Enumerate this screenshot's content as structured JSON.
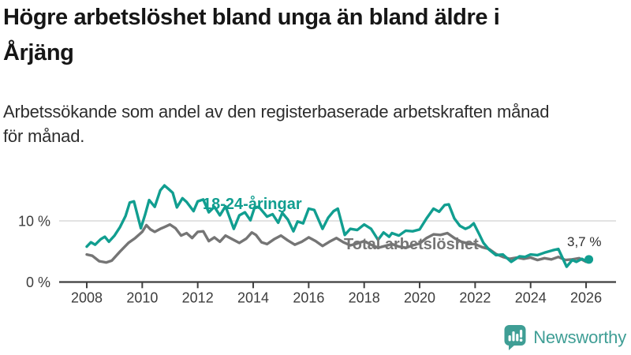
{
  "header": {
    "title": "Högre arbetslöshet bland unga än bland äldre i\nÅrjäng",
    "subtitle": "Arbetssökande som andel av den registerbaserade arbetskraften månad\nför månad."
  },
  "chart_data": {
    "type": "line",
    "title": "Högre arbetslöshet bland unga än bland äldre i Årjäng",
    "ylabel": "Arbetssökande som andel av den registerbaserade arbetskraften",
    "unit": "%",
    "xlim": [
      2008,
      2026.2
    ],
    "ylim": [
      0,
      17
    ],
    "grid": "horizontal",
    "legend_position": "inline-labels",
    "x_axis": {
      "ticks": [
        2008,
        2010,
        2012,
        2014,
        2016,
        2018,
        2020,
        2022,
        2024,
        2026
      ]
    },
    "y_axis": {
      "ticks": [
        {
          "value": 0,
          "label": "0 %"
        },
        {
          "value": 10,
          "label": "10 %"
        }
      ],
      "gridlines": [
        10
      ]
    },
    "series": [
      {
        "name": "Total arbetslöshet",
        "color": "#757575",
        "end_dot": false,
        "points": [
          [
            2008.0,
            4.5
          ],
          [
            2008.2,
            4.3
          ],
          [
            2008.45,
            3.4
          ],
          [
            2008.7,
            3.2
          ],
          [
            2008.9,
            3.5
          ],
          [
            2009.2,
            5.0
          ],
          [
            2009.5,
            6.4
          ],
          [
            2009.75,
            7.2
          ],
          [
            2010.0,
            8.2
          ],
          [
            2010.15,
            9.3
          ],
          [
            2010.3,
            8.6
          ],
          [
            2010.45,
            8.2
          ],
          [
            2010.65,
            8.7
          ],
          [
            2010.8,
            9.0
          ],
          [
            2011.0,
            9.4
          ],
          [
            2011.2,
            8.8
          ],
          [
            2011.4,
            7.6
          ],
          [
            2011.6,
            8.0
          ],
          [
            2011.8,
            7.2
          ],
          [
            2012.0,
            8.2
          ],
          [
            2012.2,
            8.3
          ],
          [
            2012.4,
            6.7
          ],
          [
            2012.6,
            7.3
          ],
          [
            2012.8,
            6.6
          ],
          [
            2013.0,
            7.6
          ],
          [
            2013.25,
            7.0
          ],
          [
            2013.5,
            6.4
          ],
          [
            2013.75,
            7.1
          ],
          [
            2013.95,
            8.1
          ],
          [
            2014.1,
            7.7
          ],
          [
            2014.3,
            6.5
          ],
          [
            2014.5,
            6.2
          ],
          [
            2014.75,
            7.0
          ],
          [
            2015.0,
            7.6
          ],
          [
            2015.25,
            6.8
          ],
          [
            2015.5,
            6.1
          ],
          [
            2015.75,
            6.6
          ],
          [
            2016.0,
            7.3
          ],
          [
            2016.25,
            6.7
          ],
          [
            2016.5,
            5.9
          ],
          [
            2016.75,
            6.6
          ],
          [
            2017.0,
            7.2
          ],
          [
            2017.25,
            6.5
          ],
          [
            2017.5,
            6.0
          ],
          [
            2017.75,
            6.3
          ],
          [
            2018.0,
            6.7
          ],
          [
            2018.25,
            6.1
          ],
          [
            2018.5,
            5.6
          ],
          [
            2018.75,
            5.9
          ],
          [
            2019.0,
            6.2
          ],
          [
            2019.25,
            5.8
          ],
          [
            2019.5,
            5.6
          ],
          [
            2019.75,
            6.0
          ],
          [
            2020.0,
            6.3
          ],
          [
            2020.25,
            7.2
          ],
          [
            2020.5,
            7.8
          ],
          [
            2020.75,
            7.7
          ],
          [
            2021.0,
            8.0
          ],
          [
            2021.25,
            7.2
          ],
          [
            2021.5,
            6.6
          ],
          [
            2021.75,
            6.3
          ],
          [
            2022.0,
            6.2
          ],
          [
            2022.25,
            5.7
          ],
          [
            2022.5,
            5.4
          ],
          [
            2022.75,
            4.6
          ],
          [
            2023.0,
            4.1
          ],
          [
            2023.25,
            3.8
          ],
          [
            2023.5,
            4.0
          ],
          [
            2023.75,
            3.8
          ],
          [
            2024.0,
            4.0
          ],
          [
            2024.25,
            3.6
          ],
          [
            2024.5,
            3.9
          ],
          [
            2024.75,
            3.7
          ],
          [
            2025.0,
            4.1
          ],
          [
            2025.25,
            3.6
          ],
          [
            2025.5,
            3.7
          ],
          [
            2025.75,
            3.9
          ],
          [
            2026.0,
            3.3
          ],
          [
            2026.15,
            3.5
          ]
        ]
      },
      {
        "name": "18-24-åringar",
        "color": "#119e90",
        "end_dot": true,
        "points": [
          [
            2008.0,
            5.8
          ],
          [
            2008.15,
            6.5
          ],
          [
            2008.3,
            6.1
          ],
          [
            2008.5,
            7.0
          ],
          [
            2008.65,
            7.4
          ],
          [
            2008.8,
            6.6
          ],
          [
            2009.0,
            7.6
          ],
          [
            2009.2,
            9.0
          ],
          [
            2009.4,
            10.8
          ],
          [
            2009.55,
            13.0
          ],
          [
            2009.7,
            13.2
          ],
          [
            2009.95,
            8.8
          ],
          [
            2010.1,
            11.0
          ],
          [
            2010.25,
            13.4
          ],
          [
            2010.45,
            12.3
          ],
          [
            2010.65,
            15.0
          ],
          [
            2010.8,
            15.8
          ],
          [
            2010.95,
            15.2
          ],
          [
            2011.1,
            14.6
          ],
          [
            2011.25,
            12.2
          ],
          [
            2011.45,
            13.7
          ],
          [
            2011.6,
            13.1
          ],
          [
            2011.85,
            11.6
          ],
          [
            2012.0,
            13.2
          ],
          [
            2012.2,
            13.5
          ],
          [
            2012.4,
            11.4
          ],
          [
            2012.6,
            12.3
          ],
          [
            2012.8,
            10.9
          ],
          [
            2013.0,
            12.4
          ],
          [
            2013.3,
            8.7
          ],
          [
            2013.5,
            10.9
          ],
          [
            2013.7,
            11.4
          ],
          [
            2013.9,
            10.1
          ],
          [
            2014.05,
            12.2
          ],
          [
            2014.2,
            12.3
          ],
          [
            2014.5,
            10.7
          ],
          [
            2014.7,
            11.1
          ],
          [
            2014.9,
            9.7
          ],
          [
            2015.05,
            11.3
          ],
          [
            2015.25,
            10.2
          ],
          [
            2015.45,
            8.3
          ],
          [
            2015.6,
            9.9
          ],
          [
            2015.8,
            9.6
          ],
          [
            2016.0,
            12.0
          ],
          [
            2016.2,
            11.8
          ],
          [
            2016.5,
            8.7
          ],
          [
            2016.7,
            10.5
          ],
          [
            2016.9,
            11.6
          ],
          [
            2017.05,
            12.0
          ],
          [
            2017.3,
            7.7
          ],
          [
            2017.5,
            8.7
          ],
          [
            2017.75,
            8.5
          ],
          [
            2018.0,
            9.4
          ],
          [
            2018.25,
            8.7
          ],
          [
            2018.5,
            6.9
          ],
          [
            2018.7,
            8.1
          ],
          [
            2018.9,
            7.4
          ],
          [
            2019.0,
            8.0
          ],
          [
            2019.25,
            7.6
          ],
          [
            2019.5,
            8.4
          ],
          [
            2019.75,
            8.3
          ],
          [
            2020.0,
            8.6
          ],
          [
            2020.25,
            10.4
          ],
          [
            2020.5,
            12.0
          ],
          [
            2020.7,
            11.5
          ],
          [
            2020.9,
            12.6
          ],
          [
            2021.05,
            12.7
          ],
          [
            2021.25,
            10.4
          ],
          [
            2021.45,
            9.2
          ],
          [
            2021.65,
            8.7
          ],
          [
            2021.8,
            9.0
          ],
          [
            2021.95,
            9.6
          ],
          [
            2022.15,
            7.8
          ],
          [
            2022.3,
            6.4
          ],
          [
            2022.5,
            5.3
          ],
          [
            2022.75,
            4.4
          ],
          [
            2023.0,
            4.5
          ],
          [
            2023.3,
            3.3
          ],
          [
            2023.6,
            4.2
          ],
          [
            2023.8,
            4.1
          ],
          [
            2024.0,
            4.5
          ],
          [
            2024.25,
            4.4
          ],
          [
            2024.5,
            4.8
          ],
          [
            2024.8,
            5.2
          ],
          [
            2025.0,
            5.4
          ],
          [
            2025.3,
            2.5
          ],
          [
            2025.5,
            3.6
          ],
          [
            2025.65,
            3.3
          ],
          [
            2025.85,
            3.8
          ],
          [
            2026.0,
            3.4
          ],
          [
            2026.1,
            3.7
          ]
        ]
      }
    ],
    "annotation": {
      "text": "3,7 %"
    }
  },
  "footer": {
    "brand": "Newsworthy",
    "logo_icon": "bar-chart-speech-bubble"
  }
}
